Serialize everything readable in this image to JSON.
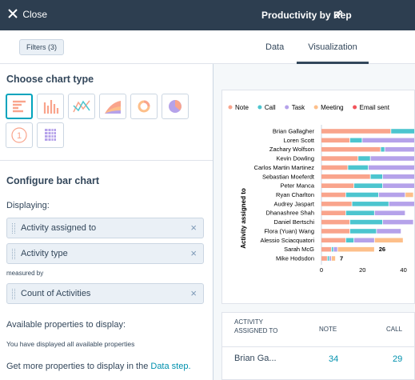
{
  "header": {
    "close": "Close",
    "title": "Productivity by Rep"
  },
  "toolbar": {
    "filters": "Filters (3)",
    "tabs": [
      "Data",
      "Visualization"
    ]
  },
  "sidebar": {
    "chart_type_heading": "Choose chart type",
    "icon_number": "1",
    "configure_heading": "Configure bar chart",
    "displaying_label": "Displaying:",
    "displaying": [
      "Activity assigned to",
      "Activity type"
    ],
    "measured_by_label": "measured by",
    "measures": [
      "Count of Activities"
    ],
    "available_heading": "Available properties to display:",
    "available_note": "You have displayed all available properties",
    "more_text": "Get more properties to display in the ",
    "more_link": "Data step."
  },
  "chart_data": {
    "type": "bar",
    "orientation": "horizontal",
    "stacked": true,
    "y_axis_label": "Activity assigned to",
    "categories": [
      "Brian Gallagher",
      "Loren Scott",
      "Zachary Wolfson",
      "Kevin Dowling",
      "Carlos Martin Martinez",
      "Sebastian Moeferdt",
      "Peter Manca",
      "Ryan Charlton",
      "Audrey Jaspart",
      "Dhanashree Shah",
      "Daniel Bertschi",
      "Flora (Yuan) Wang",
      "Alessio Sciacquatori",
      "Sarah McG",
      "Mike Hodsdon"
    ],
    "series": [
      {
        "name": "Note",
        "color": "#f9a48c",
        "values": [
          34,
          14,
          29,
          18,
          13,
          24,
          16,
          12,
          15,
          12,
          14,
          14,
          12,
          5,
          3
        ]
      },
      {
        "name": "Call",
        "color": "#4cc5cf",
        "values": [
          29,
          6,
          2,
          6,
          10,
          6,
          14,
          16,
          18,
          14,
          16,
          13,
          4,
          1,
          1
        ]
      },
      {
        "name": "Task",
        "color": "#b5a2ea",
        "values": [
          0,
          30,
          20,
          25,
          25,
          20,
          20,
          13,
          15,
          15,
          15,
          12,
          10,
          2,
          1
        ]
      },
      {
        "name": "Meeting",
        "color": "#fdbf8a",
        "values": [
          0,
          0,
          0,
          0,
          0,
          0,
          0,
          4,
          0,
          0,
          0,
          0,
          14,
          18,
          2
        ]
      },
      {
        "name": "Email sent",
        "color": "#f2545b",
        "values": [
          null,
          null,
          null,
          null,
          null,
          null,
          null,
          null,
          null,
          null,
          null,
          null,
          null,
          null,
          null
        ]
      }
    ],
    "data_labels": [
      {
        "category": "Sarah McG",
        "value": 26
      },
      {
        "category": "Mike Hodsdon",
        "value": 7
      }
    ],
    "xlim": [
      0,
      46
    ],
    "xticks": [
      0,
      20,
      40
    ]
  },
  "table": {
    "headers": [
      "ACTIVITY ASSIGNED TO",
      "NOTE",
      "CALL"
    ],
    "rows": [
      [
        "Brian Ga...",
        34,
        29
      ]
    ]
  }
}
